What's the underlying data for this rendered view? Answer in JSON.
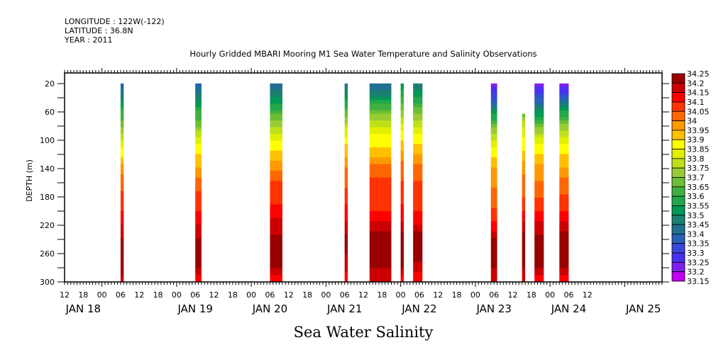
{
  "header": {
    "longitude": "LONGITUDE : 122W(-122)",
    "latitude": "LATITUDE : 36.8N",
    "year": "YEAR : 2011"
  },
  "chart_data": {
    "type": "heatmap",
    "title": "Hourly Gridded MBARI Mooring M1 Sea Water Temperature and Salinity Observations",
    "bottom_title": "Sea Water Salinity",
    "xlabel": "",
    "ylabel": "DEPTH (m)",
    "x_range_hours_from_jan18_00": [
      -12,
      180
    ],
    "ylim": [
      300,
      0
    ],
    "y_axis_inverted": true,
    "y_ticks": [
      20,
      60,
      100,
      140,
      180,
      220,
      260,
      300
    ],
    "x_hour_ticks": [
      "12",
      "18",
      "00",
      "06",
      "12",
      "18",
      "00",
      "06",
      "12",
      "18",
      "00",
      "06",
      "12",
      "18",
      "00",
      "06",
      "12",
      "18",
      "00",
      "06",
      "12",
      "18",
      "00",
      "06",
      "12",
      "18",
      "00",
      "06",
      "12"
    ],
    "x_date_labels": [
      {
        "label": "JAN 18",
        "hour": -6
      },
      {
        "label": "JAN 19",
        "hour": 30
      },
      {
        "label": "JAN 20",
        "hour": 54
      },
      {
        "label": "JAN 21",
        "hour": 78
      },
      {
        "label": "JAN 22",
        "hour": 102
      },
      {
        "label": "JAN 23",
        "hour": 126
      },
      {
        "label": "JAN 24",
        "hour": 150
      },
      {
        "label": "JAN 25",
        "hour": 174
      }
    ],
    "grid": false,
    "legend": {
      "placement": "right",
      "levels": [
        "34.25",
        "34.2",
        "34.15",
        "34.1",
        "34.05",
        "34",
        "33.95",
        "33.9",
        "33.85",
        "33.8",
        "33.75",
        "33.7",
        "33.65",
        "33.6",
        "33.55",
        "33.5",
        "33.45",
        "33.4",
        "33.35",
        "33.3",
        "33.25",
        "33.2",
        "33.15"
      ],
      "colors": [
        "#990000",
        "#cc0000",
        "#ff0000",
        "#ff3300",
        "#ff6600",
        "#ff9900",
        "#ffc000",
        "#ffff00",
        "#e0f000",
        "#bde01a",
        "#99cc33",
        "#6cbf33",
        "#40b040",
        "#22a84a",
        "#009955",
        "#1a8070",
        "#207090",
        "#2a60b8",
        "#3848d8",
        "#4a30f0",
        "#8020f0",
        "#c000f0"
      ]
    },
    "observation_segments": [
      {
        "start_hour": 6,
        "end_hour": 7,
        "top_depth": 20,
        "profile": [
          33.37,
          33.48,
          33.6,
          33.7,
          33.8,
          33.88,
          33.97,
          34.03,
          34.06,
          34.1,
          34.15,
          34.2,
          34.25,
          34.22,
          34.18
        ]
      },
      {
        "start_hour": 30,
        "end_hour": 32,
        "top_depth": 20,
        "profile": [
          33.37,
          33.47,
          33.6,
          33.7,
          33.82,
          33.9,
          33.96,
          34.02,
          34.07,
          34.1,
          34.15,
          34.2,
          34.25,
          34.22,
          34.1
        ]
      },
      {
        "start_hour": 54,
        "end_hour": 58,
        "top_depth": 20,
        "profile": [
          33.4,
          33.5,
          33.62,
          33.75,
          33.85,
          33.92,
          33.98,
          34.05,
          34.08,
          34.12,
          34.17,
          34.22,
          34.25,
          34.2,
          34.12
        ]
      },
      {
        "start_hour": 78,
        "end_hour": 79,
        "top_depth": 20,
        "profile": [
          33.42,
          33.52,
          33.65,
          33.78,
          33.88,
          33.94,
          34.0,
          34.04,
          34.07,
          34.12,
          34.16,
          34.22,
          34.2,
          34.18,
          34.1
        ]
      },
      {
        "start_hour": 86,
        "end_hour": 93,
        "top_depth": 20,
        "profile": [
          33.4,
          33.52,
          33.68,
          33.8,
          33.88,
          33.93,
          34.02,
          34.06,
          34.07,
          34.1,
          34.17,
          34.24,
          34.25,
          34.2,
          34.15
        ]
      },
      {
        "start_hour": 96,
        "end_hour": 97,
        "top_depth": 20,
        "profile": [
          33.5,
          33.6,
          33.72,
          33.82,
          33.9,
          33.96,
          34.03,
          34.05,
          34.07,
          34.12,
          34.16,
          34.24,
          34.2,
          34.2,
          34.12
        ]
      },
      {
        "start_hour": 100,
        "end_hour": 103,
        "top_depth": 20,
        "profile": [
          33.45,
          33.55,
          33.68,
          33.8,
          33.88,
          33.95,
          34.02,
          34.05,
          34.06,
          34.1,
          34.15,
          34.24,
          34.22,
          34.18,
          34.1
        ]
      },
      {
        "start_hour": 125,
        "end_hour": 127,
        "top_depth": 20,
        "profile": [
          33.22,
          33.32,
          33.5,
          33.7,
          33.8,
          33.88,
          33.95,
          33.99,
          34.03,
          34.06,
          34.12,
          34.2,
          34.25,
          34.2,
          34.18
        ]
      },
      {
        "start_hour": 135,
        "end_hour": 136,
        "top_depth": 60,
        "profile": [
          null,
          null,
          33.65,
          33.8,
          33.86,
          33.92,
          33.98,
          34.03,
          34.05,
          34.1,
          34.17,
          34.23,
          34.25,
          34.2,
          34.18
        ]
      },
      {
        "start_hour": 139,
        "end_hour": 142,
        "top_depth": 20,
        "profile": [
          33.22,
          33.34,
          33.5,
          33.68,
          33.82,
          33.9,
          33.97,
          34.0,
          34.05,
          34.1,
          34.16,
          34.22,
          34.25,
          34.2,
          34.12
        ]
      },
      {
        "start_hour": 147,
        "end_hour": 150,
        "top_depth": 20,
        "profile": [
          33.22,
          33.35,
          33.55,
          33.72,
          33.82,
          33.9,
          33.96,
          34.02,
          34.06,
          34.1,
          34.17,
          34.24,
          34.25,
          34.2,
          34.12
        ]
      }
    ]
  }
}
